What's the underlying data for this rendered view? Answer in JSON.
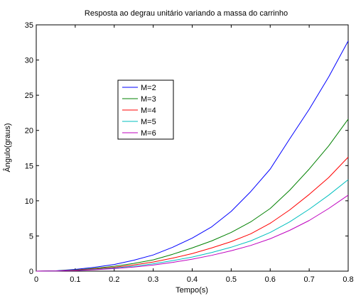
{
  "chart_data": {
    "type": "line",
    "title": "Resposta ao degrau unitário variando a massa do carrinho",
    "xlabel": "Tempo(s)",
    "ylabel": "Ângulo(graus)",
    "xlim": [
      0,
      0.8
    ],
    "ylim": [
      0,
      35
    ],
    "x_ticks": [
      "0",
      "0.1",
      "0.2",
      "0.3",
      "0.4",
      "0.5",
      "0.6",
      "0.7",
      "0.8"
    ],
    "y_ticks": [
      "0",
      "5",
      "10",
      "15",
      "20",
      "25",
      "30",
      "35"
    ],
    "grid": false,
    "legend_position": "upper-left",
    "x": [
      0,
      0.05,
      0.1,
      0.15,
      0.2,
      0.25,
      0.3,
      0.35,
      0.4,
      0.45,
      0.5,
      0.55,
      0.6,
      0.65,
      0.7,
      0.75,
      0.8
    ],
    "series": [
      {
        "name": "M=2",
        "color": "#0000ff",
        "values": [
          0,
          0.05,
          0.25,
          0.55,
          0.95,
          1.55,
          2.3,
          3.4,
          4.7,
          6.3,
          8.5,
          11.3,
          14.5,
          18.8,
          23.0,
          27.6,
          32.7
        ]
      },
      {
        "name": "M=3",
        "color": "#008000",
        "values": [
          0,
          0.04,
          0.18,
          0.4,
          0.7,
          1.1,
          1.6,
          2.4,
          3.3,
          4.3,
          5.5,
          7.0,
          8.9,
          11.5,
          14.5,
          17.8,
          21.6
        ]
      },
      {
        "name": "M=4",
        "color": "#ff0000",
        "values": [
          0,
          0.03,
          0.14,
          0.32,
          0.56,
          0.88,
          1.3,
          1.85,
          2.5,
          3.3,
          4.2,
          5.3,
          6.8,
          8.7,
          10.9,
          13.3,
          16.2
        ]
      },
      {
        "name": "M=5",
        "color": "#00bfbf",
        "values": [
          0,
          0.02,
          0.1,
          0.25,
          0.45,
          0.7,
          1.05,
          1.5,
          2.0,
          2.65,
          3.4,
          4.3,
          5.5,
          7.0,
          8.8,
          10.8,
          13.0
        ]
      },
      {
        "name": "M=6",
        "color": "#bf00bf",
        "values": [
          0,
          0.02,
          0.08,
          0.2,
          0.37,
          0.58,
          0.87,
          1.25,
          1.7,
          2.25,
          2.9,
          3.65,
          4.6,
          5.8,
          7.2,
          8.9,
          10.8
        ]
      }
    ]
  }
}
